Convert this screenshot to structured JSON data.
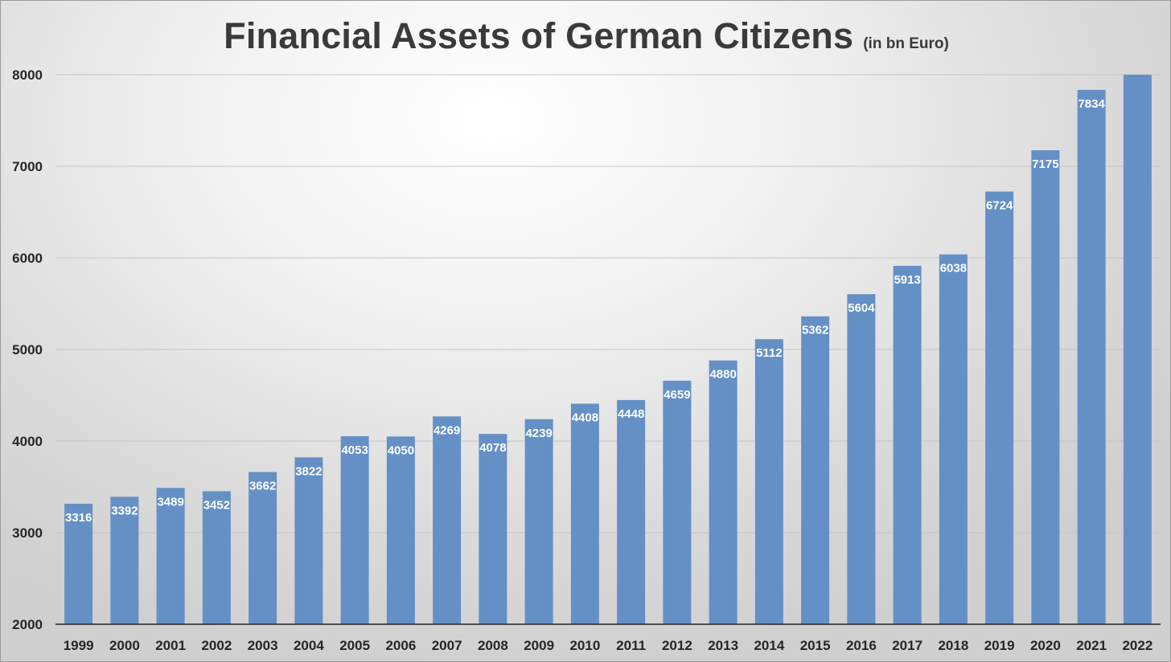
{
  "chart_data": {
    "type": "bar",
    "title": "Financial Assets of German Citizens",
    "subtitle": "(in bn Euro)",
    "categories": [
      "1999",
      "2000",
      "2001",
      "2002",
      "2003",
      "2004",
      "2005",
      "2006",
      "2007",
      "2008",
      "2009",
      "2010",
      "2011",
      "2012",
      "2013",
      "2014",
      "2015",
      "2016",
      "2017",
      "2018",
      "2019",
      "2020",
      "2021",
      "2022"
    ],
    "values": [
      3316,
      3392,
      3489,
      3452,
      3662,
      3822,
      4053,
      4050,
      4269,
      4078,
      4239,
      4408,
      4448,
      4659,
      4880,
      5112,
      5362,
      5604,
      5913,
      6038,
      6724,
      7175,
      7834,
      8000
    ],
    "data_labels": [
      "3316",
      "3392",
      "3489",
      "3452",
      "3662",
      "3822",
      "4053",
      "4050",
      "4269",
      "4078",
      "4239",
      "4408",
      "4448",
      "4659",
      "4880",
      "5112",
      "5362",
      "5604",
      "5913",
      "6038",
      "6724",
      "7175",
      "7834",
      ""
    ],
    "xlabel": "",
    "ylabel": "",
    "ylim": [
      2000,
      8000
    ],
    "yticks": [
      2000,
      3000,
      4000,
      5000,
      6000,
      7000,
      8000
    ],
    "grid": true,
    "legend": "none",
    "bar_color": "#6590c6"
  }
}
